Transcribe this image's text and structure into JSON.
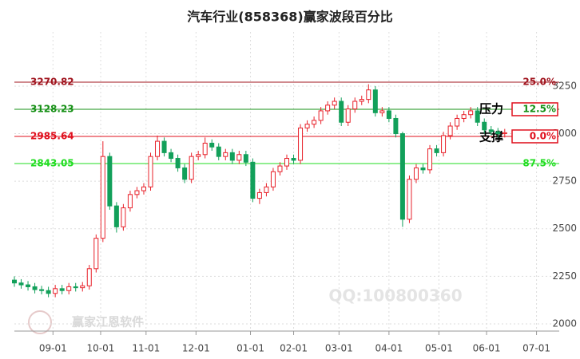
{
  "chart_data": {
    "type": "candlestick",
    "title": "汽车行业(858368)赢家波段百分比",
    "x": [
      0,
      3,
      6,
      9,
      12,
      15,
      18,
      21,
      24,
      27,
      30,
      33,
      36,
      39,
      42,
      45,
      48,
      51,
      54,
      57,
      60,
      63,
      66,
      69,
      72,
      75,
      78,
      81,
      84,
      87,
      90,
      93,
      96,
      99,
      102,
      105,
      108,
      111,
      114,
      117,
      120,
      123,
      126,
      129,
      132,
      135,
      138,
      141,
      144,
      147,
      150,
      153,
      156,
      159,
      162,
      165,
      168,
      171,
      174,
      177,
      180,
      183,
      186,
      189,
      192,
      195,
      198,
      201,
      204,
      207,
      210,
      213,
      216
    ],
    "open": [
      2230,
      2215,
      2205,
      2195,
      2180,
      2175,
      2160,
      2185,
      2175,
      2195,
      2190,
      2200,
      2290,
      2450,
      2880,
      2620,
      2510,
      2610,
      2680,
      2700,
      2720,
      2880,
      2960,
      2900,
      2870,
      2820,
      2760,
      2880,
      2890,
      2950,
      2930,
      2880,
      2900,
      2860,
      2890,
      2850,
      2660,
      2690,
      2720,
      2800,
      2830,
      2870,
      2860,
      3030,
      3050,
      3070,
      3120,
      3150,
      3170,
      3060,
      3130,
      3170,
      3180,
      3230,
      3110,
      3120,
      3080,
      3000,
      2550,
      2760,
      2820,
      2810,
      2920,
      2900,
      2990,
      3040,
      3080,
      3100,
      3120,
      3060,
      3020,
      3010,
      3000
    ],
    "high": [
      2250,
      2235,
      2225,
      2215,
      2200,
      2195,
      2205,
      2205,
      2215,
      2215,
      2220,
      2310,
      2470,
      2960,
      2900,
      2640,
      2630,
      2700,
      2720,
      2740,
      2900,
      2990,
      2980,
      2920,
      2890,
      2840,
      2900,
      2910,
      2980,
      2970,
      2950,
      2920,
      2920,
      2910,
      2910,
      2870,
      2710,
      2740,
      2820,
      2850,
      2890,
      2890,
      3050,
      3070,
      3090,
      3140,
      3170,
      3190,
      3190,
      3150,
      3190,
      3200,
      3260,
      3250,
      3140,
      3140,
      3100,
      3010,
      2780,
      2840,
      2840,
      2940,
      2940,
      3010,
      3060,
      3100,
      3120,
      3140,
      3140,
      3080,
      3040,
      3030,
      3025
    ],
    "low": [
      2195,
      2185,
      2175,
      2160,
      2155,
      2140,
      2140,
      2155,
      2155,
      2170,
      2170,
      2180,
      2270,
      2430,
      2600,
      2480,
      2490,
      2590,
      2660,
      2680,
      2700,
      2860,
      2880,
      2850,
      2800,
      2740,
      2740,
      2860,
      2870,
      2910,
      2860,
      2860,
      2840,
      2840,
      2830,
      2640,
      2630,
      2670,
      2700,
      2780,
      2810,
      2840,
      2840,
      3010,
      3030,
      3050,
      3100,
      3130,
      3040,
      3040,
      3110,
      3150,
      3160,
      3090,
      3090,
      3060,
      2980,
      2510,
      2530,
      2740,
      2790,
      2790,
      2880,
      2880,
      2970,
      3020,
      3060,
      3080,
      3040,
      3000,
      2990,
      2980,
      2980
    ],
    "close": [
      2215,
      2205,
      2195,
      2180,
      2175,
      2160,
      2185,
      2175,
      2195,
      2190,
      2200,
      2290,
      2450,
      2880,
      2620,
      2510,
      2610,
      2680,
      2700,
      2720,
      2880,
      2960,
      2900,
      2870,
      2820,
      2760,
      2880,
      2890,
      2950,
      2930,
      2880,
      2900,
      2860,
      2890,
      2850,
      2660,
      2690,
      2720,
      2800,
      2830,
      2870,
      2860,
      3030,
      3050,
      3070,
      3120,
      3150,
      3170,
      3060,
      3130,
      3170,
      3180,
      3230,
      3110,
      3120,
      3080,
      3000,
      2550,
      2760,
      2820,
      2810,
      2920,
      2900,
      2990,
      3040,
      3080,
      3100,
      3120,
      3060,
      3020,
      3010,
      3000,
      3005
    ],
    "up_color": "#e8212a",
    "down_color": "#12a05a",
    "xlim": [
      0,
      240
    ],
    "xticks": [
      {
        "value": 17,
        "label": "09-01"
      },
      {
        "value": 38,
        "label": "10-01"
      },
      {
        "value": 58,
        "label": "11-01"
      },
      {
        "value": 80,
        "label": "12-01"
      },
      {
        "value": 104,
        "label": "01-01"
      },
      {
        "value": 123,
        "label": "02-01"
      },
      {
        "value": 143,
        "label": "03-01"
      },
      {
        "value": 165,
        "label": "04-01"
      },
      {
        "value": 187,
        "label": "05-01"
      },
      {
        "value": 208,
        "label": "06-01"
      },
      {
        "value": 230,
        "label": "07-01"
      }
    ],
    "ylim": [
      1962,
      3535
    ],
    "yticks": [
      2000,
      2250,
      2500,
      2750,
      3000,
      3250
    ],
    "grid": true,
    "levels": [
      {
        "value": 3270.82,
        "percent": "25.0%",
        "color": "#a0141e"
      },
      {
        "value": 3128.23,
        "percent": "12.5%",
        "color": "#169016"
      },
      {
        "value": 2985.64,
        "percent": "0.0%",
        "color": "#e0101e"
      },
      {
        "value": 2843.05,
        "percent": "87.5%",
        "color": "#22dd22"
      }
    ],
    "resistance_label": "压力",
    "support_label": "支撑",
    "watermarks": [
      "QQ:100800360",
      "赢家江恩软件"
    ]
  }
}
